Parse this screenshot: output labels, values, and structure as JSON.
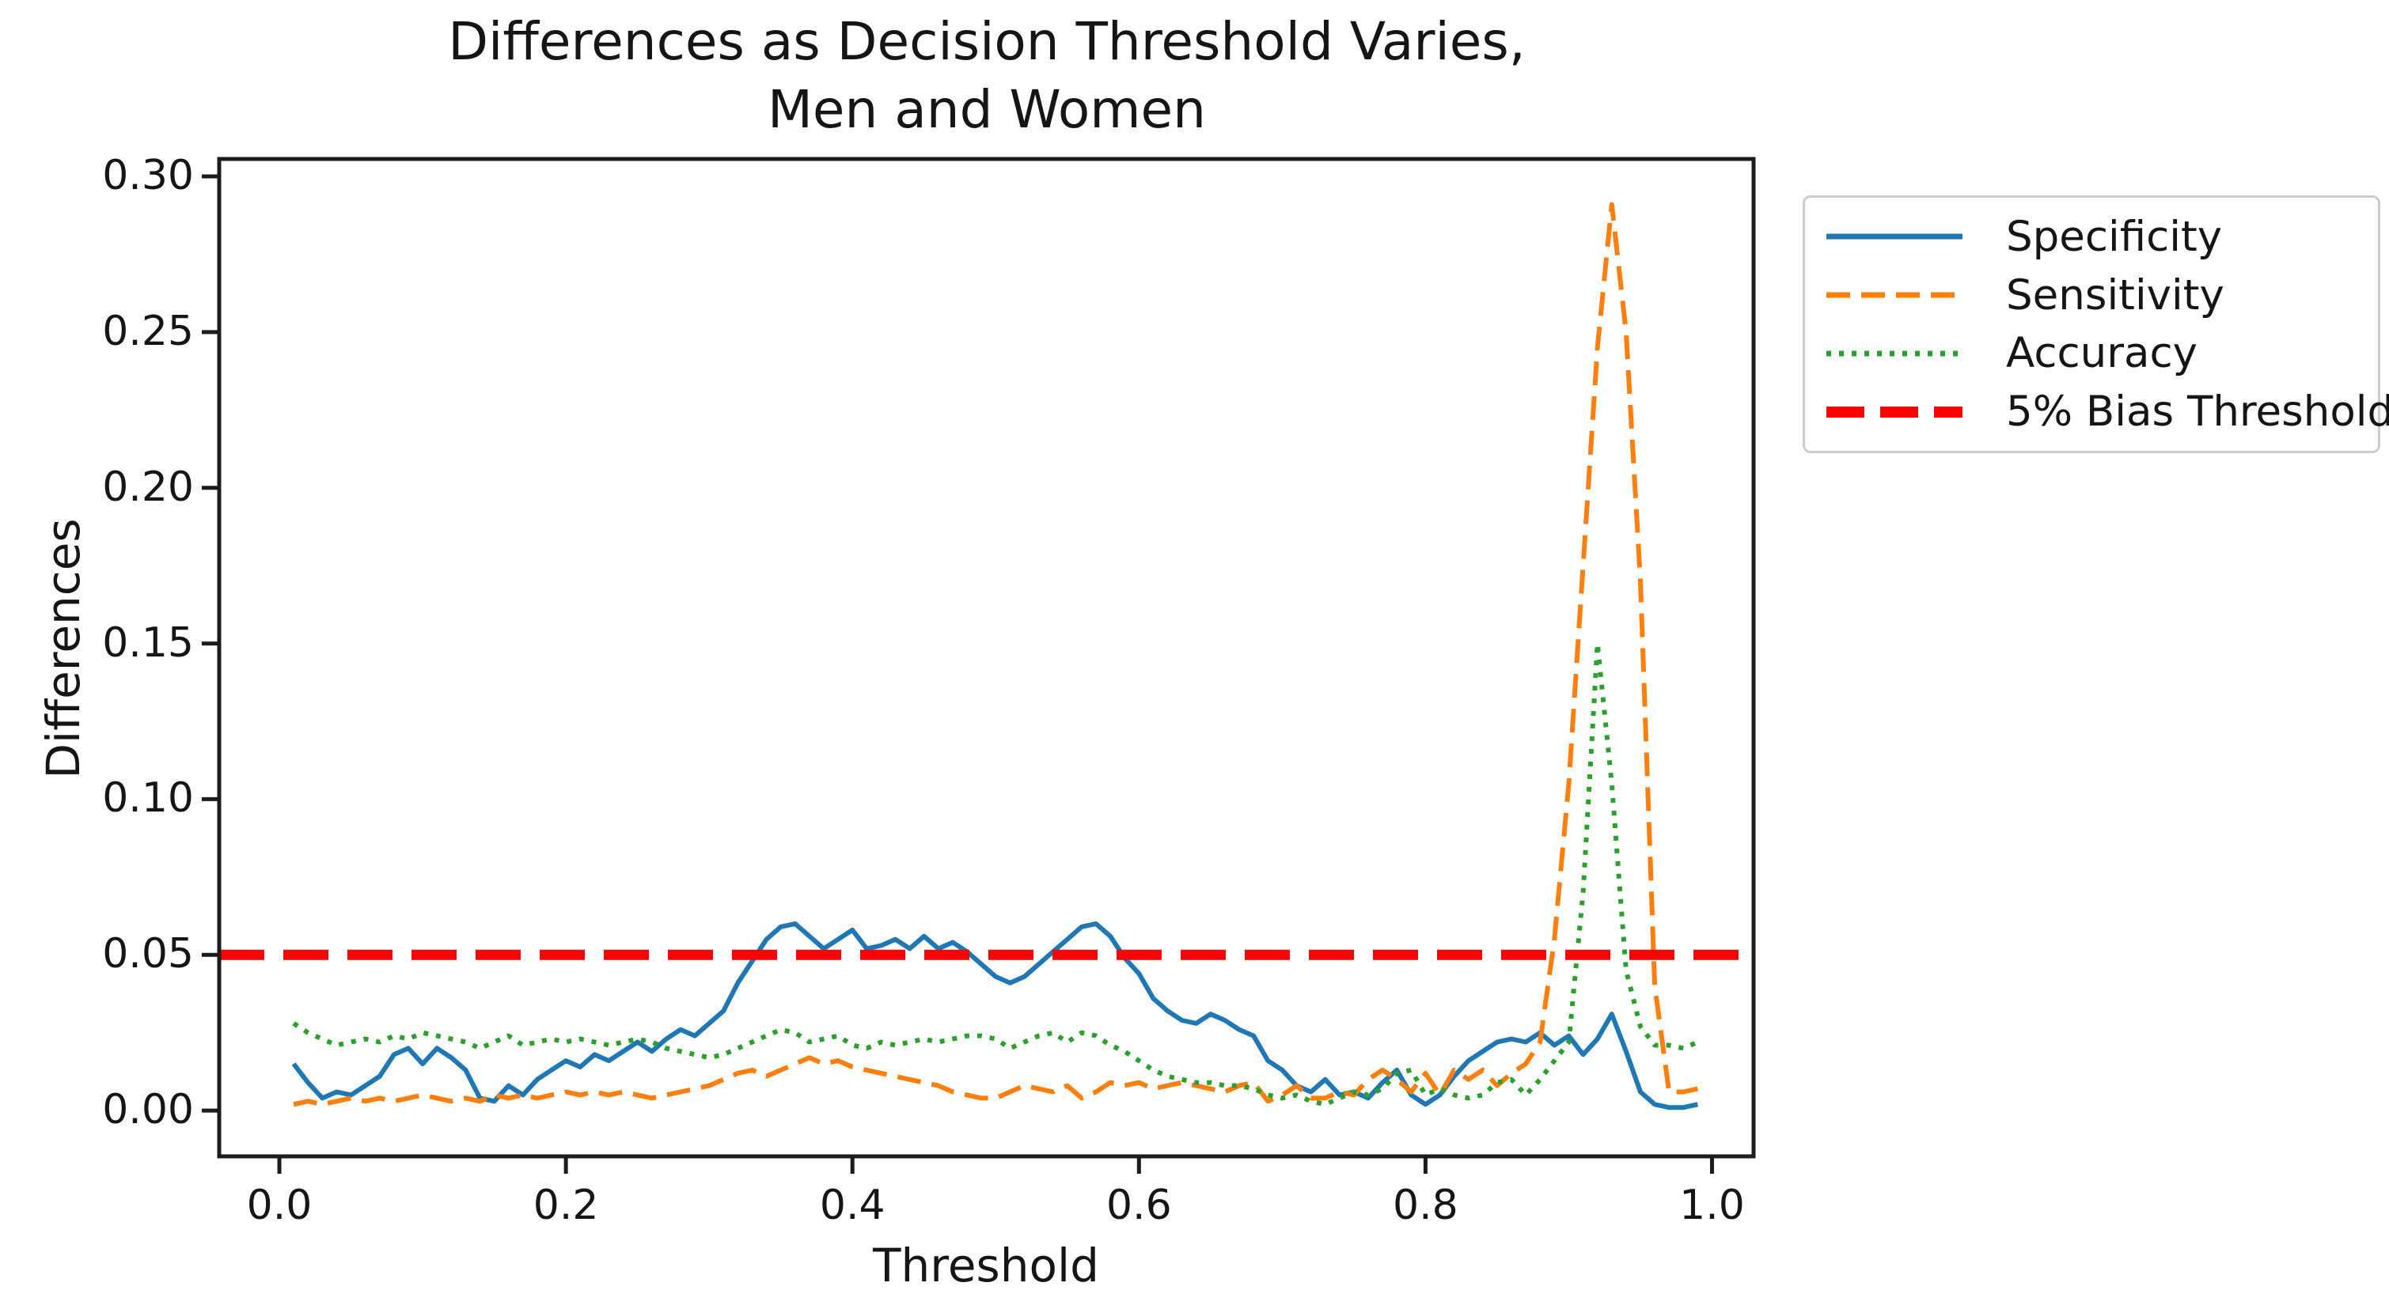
{
  "chart_data": {
    "type": "line",
    "title": "Differences as Decision Threshold Varies,\nMen and Women",
    "xlabel": "Threshold",
    "ylabel": "Differences",
    "grid": false,
    "legend_position": "outside upper right",
    "xlim": [
      -0.042,
      1.029
    ],
    "ylim": [
      -0.0147,
      0.3056
    ],
    "x_ticks": [
      {
        "label": "0.0",
        "value": 0.0
      },
      {
        "label": "0.2",
        "value": 0.2
      },
      {
        "label": "0.4",
        "value": 0.4
      },
      {
        "label": "0.6",
        "value": 0.6
      },
      {
        "label": "0.8",
        "value": 0.8
      },
      {
        "label": "1.0",
        "value": 1.0
      }
    ],
    "y_ticks": [
      {
        "label": "0.00",
        "value": 0.0
      },
      {
        "label": "0.05",
        "value": 0.05
      },
      {
        "label": "0.10",
        "value": 0.1
      },
      {
        "label": "0.15",
        "value": 0.15
      },
      {
        "label": "0.20",
        "value": 0.2
      },
      {
        "label": "0.25",
        "value": 0.25
      },
      {
        "label": "0.30",
        "value": 0.3
      }
    ],
    "x": [
      0.01,
      0.02,
      0.03,
      0.04,
      0.05,
      0.06,
      0.07,
      0.08,
      0.09,
      0.1,
      0.11,
      0.12,
      0.13,
      0.14,
      0.15,
      0.16,
      0.17,
      0.18,
      0.19,
      0.2,
      0.21,
      0.22,
      0.23,
      0.24,
      0.25,
      0.26,
      0.27,
      0.28,
      0.29,
      0.3,
      0.31,
      0.32,
      0.33,
      0.34,
      0.35,
      0.36,
      0.37,
      0.38,
      0.39,
      0.4,
      0.41,
      0.42,
      0.43,
      0.44,
      0.45,
      0.46,
      0.47,
      0.48,
      0.49,
      0.5,
      0.51,
      0.52,
      0.53,
      0.54,
      0.55,
      0.56,
      0.57,
      0.58,
      0.59,
      0.6,
      0.61,
      0.62,
      0.63,
      0.64,
      0.65,
      0.66,
      0.67,
      0.68,
      0.69,
      0.7,
      0.71,
      0.72,
      0.73,
      0.74,
      0.75,
      0.76,
      0.77,
      0.78,
      0.79,
      0.8,
      0.81,
      0.82,
      0.83,
      0.84,
      0.85,
      0.86,
      0.87,
      0.88,
      0.89,
      0.9,
      0.91,
      0.92,
      0.93,
      0.94,
      0.95,
      0.96,
      0.97,
      0.98,
      0.99
    ],
    "series": [
      {
        "name": "Specificity",
        "color": "#1f77b4",
        "style": "solid",
        "values": [
          0.015,
          0.009,
          0.004,
          0.006,
          0.005,
          0.008,
          0.011,
          0.018,
          0.02,
          0.015,
          0.02,
          0.017,
          0.013,
          0.004,
          0.003,
          0.008,
          0.005,
          0.01,
          0.013,
          0.016,
          0.014,
          0.018,
          0.016,
          0.019,
          0.022,
          0.019,
          0.023,
          0.026,
          0.024,
          0.028,
          0.032,
          0.041,
          0.048,
          0.055,
          0.059,
          0.06,
          0.056,
          0.052,
          0.055,
          0.058,
          0.052,
          0.053,
          0.055,
          0.052,
          0.056,
          0.052,
          0.054,
          0.051,
          0.047,
          0.043,
          0.041,
          0.043,
          0.047,
          0.051,
          0.055,
          0.059,
          0.06,
          0.056,
          0.049,
          0.044,
          0.036,
          0.032,
          0.029,
          0.028,
          0.031,
          0.029,
          0.026,
          0.024,
          0.016,
          0.013,
          0.008,
          0.006,
          0.01,
          0.005,
          0.006,
          0.004,
          0.009,
          0.013,
          0.005,
          0.002,
          0.005,
          0.011,
          0.016,
          0.019,
          0.022,
          0.023,
          0.022,
          0.025,
          0.021,
          0.024,
          0.018,
          0.023,
          0.031,
          0.019,
          0.006,
          0.002,
          0.001,
          0.001,
          0.002
        ]
      },
      {
        "name": "Sensitivity",
        "color": "#ff7f0e",
        "style": "dashed",
        "values": [
          0.002,
          0.003,
          0.002,
          0.003,
          0.004,
          0.003,
          0.004,
          0.003,
          0.004,
          0.005,
          0.004,
          0.003,
          0.004,
          0.003,
          0.005,
          0.004,
          0.005,
          0.004,
          0.005,
          0.006,
          0.005,
          0.006,
          0.005,
          0.006,
          0.005,
          0.004,
          0.005,
          0.006,
          0.007,
          0.008,
          0.01,
          0.012,
          0.013,
          0.011,
          0.013,
          0.015,
          0.017,
          0.015,
          0.016,
          0.014,
          0.013,
          0.012,
          0.011,
          0.01,
          0.009,
          0.008,
          0.006,
          0.005,
          0.004,
          0.004,
          0.006,
          0.008,
          0.007,
          0.006,
          0.008,
          0.004,
          0.006,
          0.009,
          0.008,
          0.009,
          0.007,
          0.008,
          0.009,
          0.008,
          0.007,
          0.006,
          0.008,
          0.009,
          0.003,
          0.005,
          0.008,
          0.004,
          0.004,
          0.006,
          0.005,
          0.01,
          0.013,
          0.01,
          0.006,
          0.012,
          0.005,
          0.013,
          0.01,
          0.013,
          0.008,
          0.012,
          0.015,
          0.022,
          0.055,
          0.105,
          0.175,
          0.245,
          0.291,
          0.25,
          0.17,
          0.04,
          0.006,
          0.006,
          0.007
        ]
      },
      {
        "name": "Accuracy",
        "color": "#2ca02c",
        "style": "dotted",
        "values": [
          0.028,
          0.025,
          0.023,
          0.021,
          0.022,
          0.023,
          0.022,
          0.024,
          0.023,
          0.025,
          0.024,
          0.023,
          0.022,
          0.02,
          0.022,
          0.024,
          0.021,
          0.022,
          0.023,
          0.022,
          0.023,
          0.022,
          0.021,
          0.022,
          0.023,
          0.022,
          0.02,
          0.019,
          0.018,
          0.017,
          0.018,
          0.02,
          0.022,
          0.024,
          0.026,
          0.025,
          0.022,
          0.023,
          0.024,
          0.021,
          0.02,
          0.022,
          0.021,
          0.022,
          0.023,
          0.022,
          0.023,
          0.024,
          0.024,
          0.023,
          0.02,
          0.022,
          0.024,
          0.025,
          0.022,
          0.025,
          0.024,
          0.021,
          0.019,
          0.016,
          0.013,
          0.011,
          0.01,
          0.009,
          0.009,
          0.008,
          0.008,
          0.007,
          0.005,
          0.004,
          0.005,
          0.003,
          0.002,
          0.004,
          0.006,
          0.005,
          0.007,
          0.012,
          0.013,
          0.005,
          0.007,
          0.005,
          0.004,
          0.005,
          0.009,
          0.01,
          0.005,
          0.01,
          0.016,
          0.022,
          0.07,
          0.15,
          0.105,
          0.045,
          0.027,
          0.021,
          0.021,
          0.02,
          0.022
        ]
      }
    ],
    "reference_line": {
      "name": "5% Bias Threshold",
      "color": "#ff0000",
      "style": "dashed-thick",
      "value": 0.05
    }
  }
}
